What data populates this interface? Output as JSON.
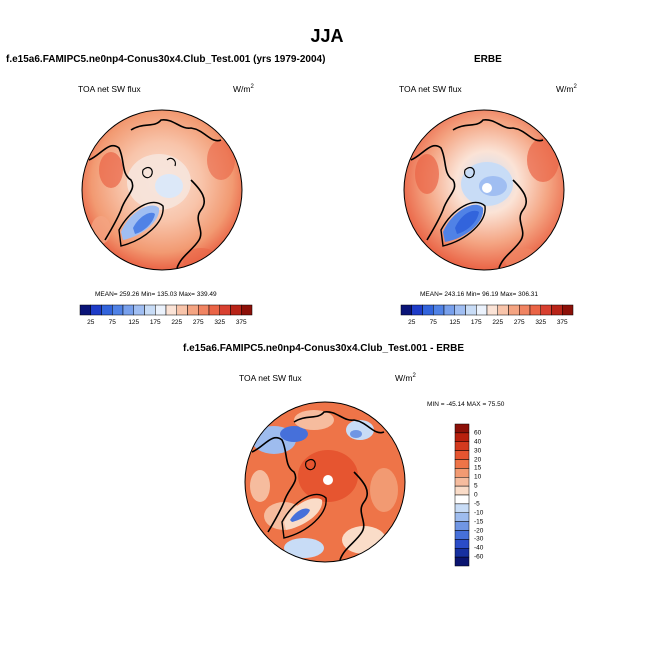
{
  "figure": {
    "title": "JJA"
  },
  "panels": [
    {
      "title": "f.e15a6.FAMIPC5.ne0np4-Conus30x4.Club_Test.001 (yrs 1979-2004)",
      "left_label": "TOA net SW flux",
      "right_label": "W/m",
      "units_exp": "2",
      "stats": "MEAN= 259.26  Min= 135.03  Max= 339.49"
    },
    {
      "title": "ERBE",
      "left_label": "TOA net SW flux",
      "right_label": "W/m",
      "units_exp": "2",
      "stats": "MEAN= 243.16  Min=  96.19  Max= 306.31"
    },
    {
      "title": "f.e15a6.FAMIPC5.ne0np4-Conus30x4.Club_Test.001 - ERBE",
      "left_label": "TOA net SW flux",
      "right_label": "W/m",
      "units_exp": "2",
      "stats": "MIN = -45.14 MAX =  75.50"
    }
  ],
  "colorbar_h": {
    "labels": [
      "25",
      "75",
      "125",
      "175",
      "225",
      "275",
      "325",
      "375"
    ],
    "colors": [
      "#0a1478",
      "#1e3cc8",
      "#3264dc",
      "#5082e6",
      "#78a0ec",
      "#a0bef2",
      "#c8dcf6",
      "#ebf2fc",
      "#fbe3d6",
      "#f8c4aa",
      "#f4a482",
      "#f08462",
      "#ea6446",
      "#d84030",
      "#b82418",
      "#8c1008"
    ]
  },
  "colorbar_v": {
    "labels": [
      "60",
      "40",
      "30",
      "20",
      "15",
      "10",
      "5",
      "0",
      "-5",
      "-10",
      "-15",
      "-20",
      "-30",
      "-40",
      "-60"
    ],
    "colors": [
      "#8c1008",
      "#b8200e",
      "#d43a1e",
      "#e65530",
      "#ee7448",
      "#f29a72",
      "#f6bc9e",
      "#fadcc8",
      "#ffffff",
      "#c8dcf6",
      "#9ebcee",
      "#7096e4",
      "#4670da",
      "#2a4cc8",
      "#1630a0",
      "#0a1470"
    ]
  },
  "map_colors": {
    "ocean_model": "#f29a72",
    "ocean_obs": "#f29a72",
    "ice_light": "#eef4fc",
    "ice_mid": "#a0bef2",
    "ice_dark": "#3a6ad4",
    "diff_bg": "#e65530",
    "diff_light": "#f6bc9e"
  }
}
